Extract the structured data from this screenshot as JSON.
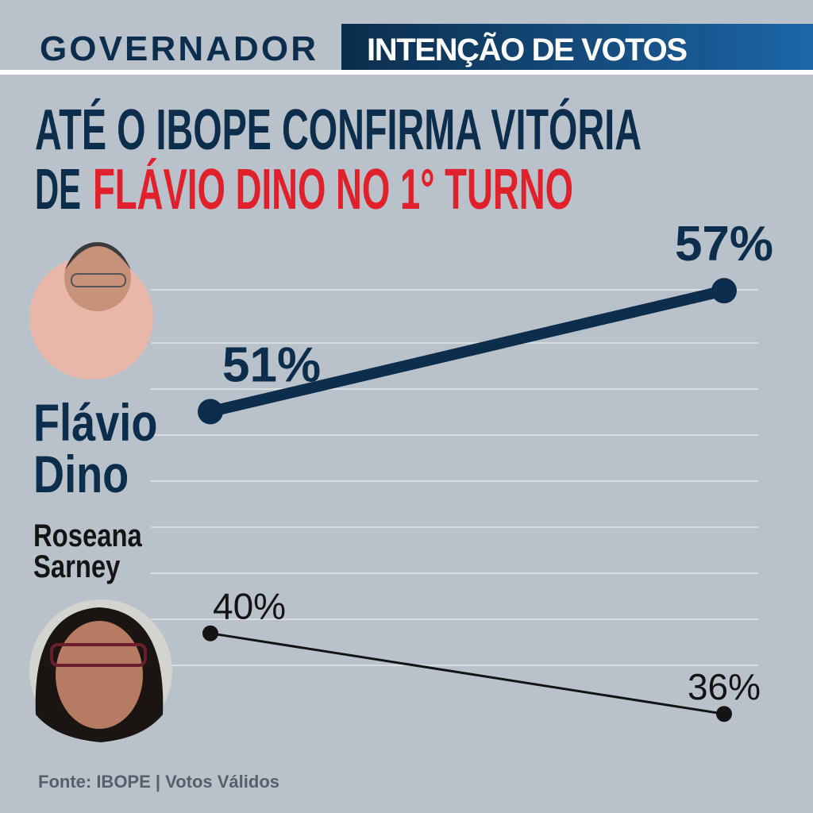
{
  "header": {
    "section": "GOVERNADOR",
    "tag": "INTENÇÃO DE VOTOS"
  },
  "headline": {
    "line1": "ATÉ O IBOPE CONFIRMA VITÓRIA",
    "line2_prefix": "DE",
    "line2_highlight": "FLÁVIO DINO NO 1° TURNO"
  },
  "chart_data": {
    "type": "line",
    "categories": [
      null,
      null
    ],
    "ylim": [
      34,
      60
    ],
    "series": [
      {
        "name": "Flávio Dino",
        "color": "#0c2d4c",
        "values": [
          51,
          57
        ],
        "value_labels": [
          "51%",
          "57%"
        ]
      },
      {
        "name": "Roseana Sarney",
        "color": "#141414",
        "values": [
          40,
          36
        ],
        "value_labels": [
          "40%",
          "36%"
        ]
      }
    ]
  },
  "source": "Fonte: IBOPE | Votos Válidos"
}
